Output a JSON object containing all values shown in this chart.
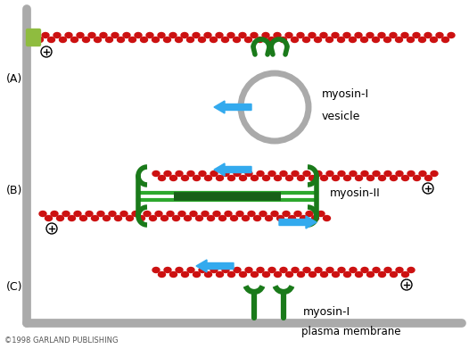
{
  "bg_color": "#ffffff",
  "actin_color": "#cc1111",
  "myosin_head_color": "#1a7a1a",
  "myosin_rod_color": "#2da82d",
  "myosin_rod_dark": "#186018",
  "vesicle_color": "#aaaaaa",
  "arrow_color": "#33aaee",
  "wall_color": "#aaaaaa",
  "anchor_color": "#8fbc3f",
  "label_A": "(A)",
  "label_B": "(B)",
  "label_C": "(C)",
  "label_myosin1_A": "myosin-I",
  "label_vesicle": "vesicle",
  "label_myosin2_B": "myosin-II",
  "label_myosin1_C": "myosin-I",
  "label_plasma": "plasma membrane",
  "label_copyright": "©1998 GARLAND PUBLISHING",
  "fig_width": 5.26,
  "fig_height": 3.91,
  "dpi": 100
}
